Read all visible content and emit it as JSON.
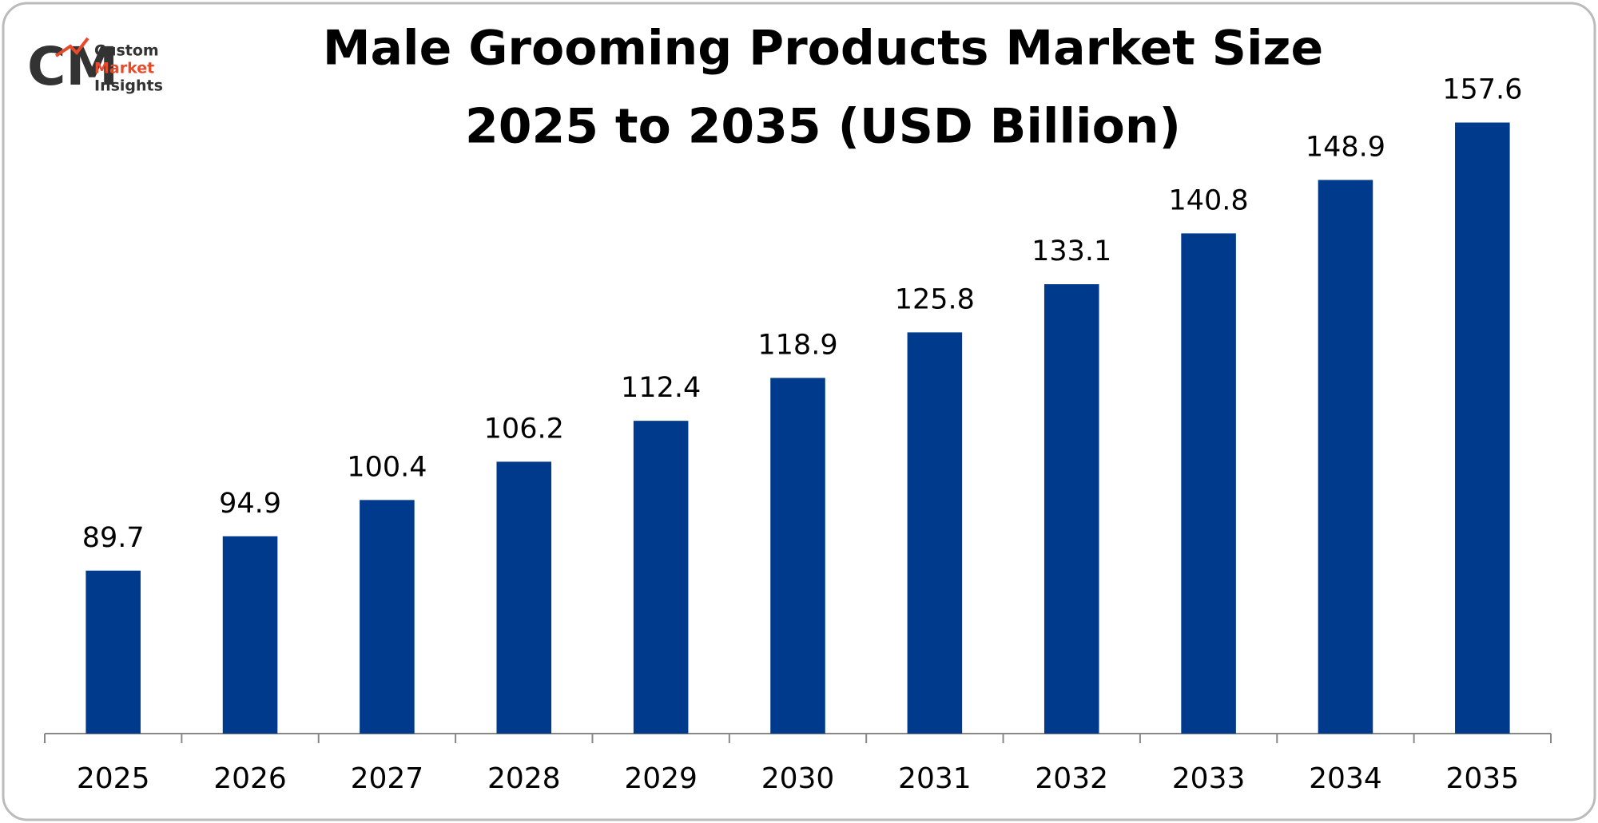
{
  "logo": {
    "mark": "CM",
    "lines": [
      "Custom",
      "Market",
      "Insights"
    ]
  },
  "chart_data": {
    "type": "bar",
    "title": [
      "Male Grooming Products Market Size",
      "2025 to 2035 (USD Billion)"
    ],
    "categories": [
      "2025",
      "2026",
      "2027",
      "2028",
      "2029",
      "2030",
      "2031",
      "2032",
      "2033",
      "2034",
      "2035"
    ],
    "values": [
      89.7,
      94.9,
      100.4,
      106.2,
      112.4,
      118.9,
      125.8,
      133.1,
      140.8,
      148.9,
      157.6
    ],
    "color": "#003a8c",
    "ylim": [
      65,
      170
    ],
    "grid": false
  }
}
